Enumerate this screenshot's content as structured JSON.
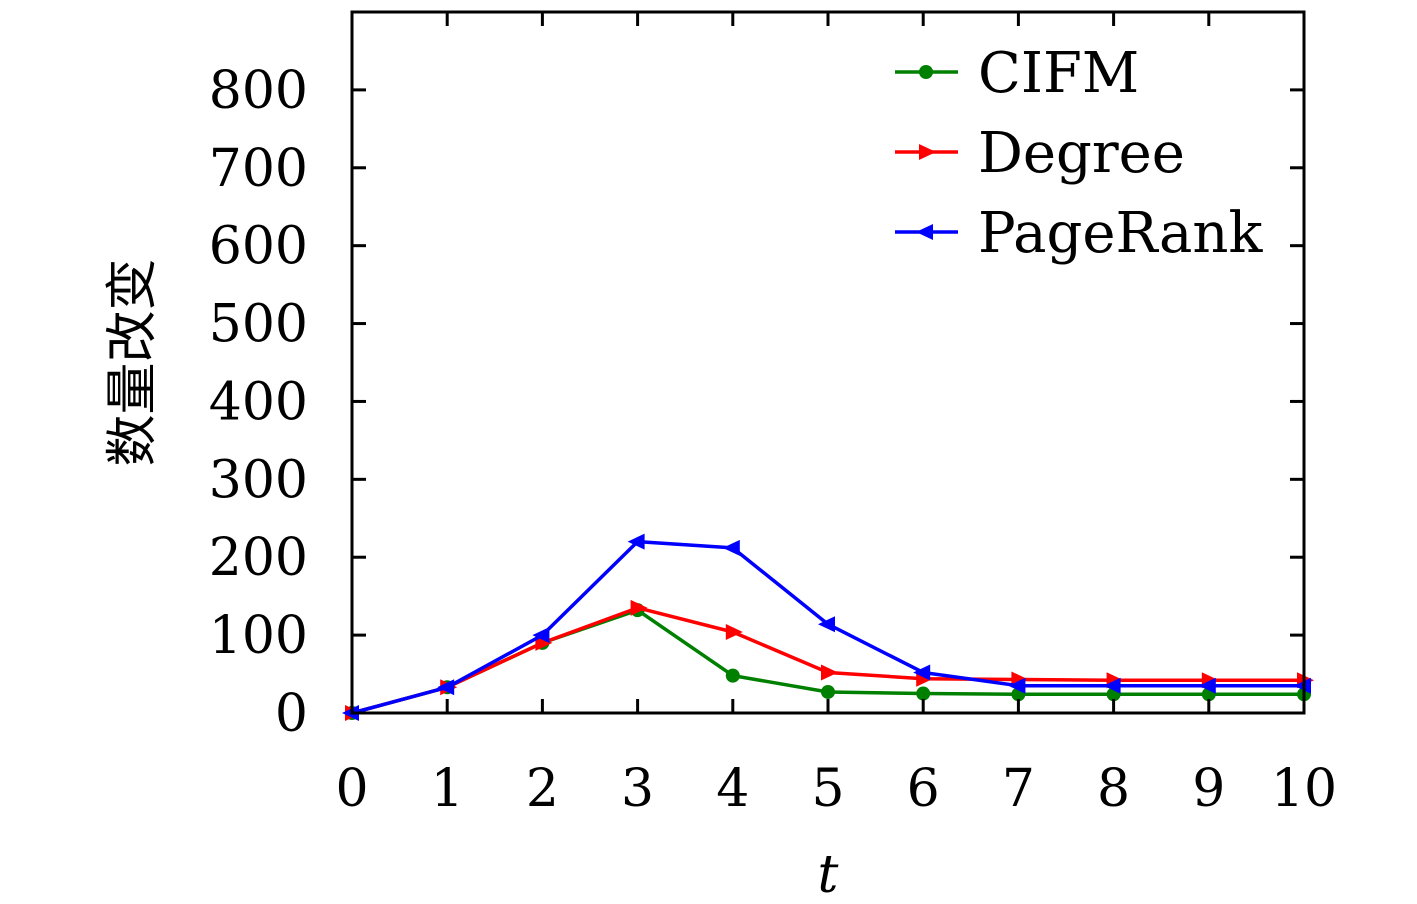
{
  "chart_data": {
    "type": "line",
    "title": "",
    "xlabel": "t",
    "ylabel": "数量改变",
    "x": [
      0,
      1,
      2,
      3,
      4,
      5,
      6,
      7,
      8,
      9,
      10
    ],
    "xlim": [
      0,
      10
    ],
    "ylim": [
      0,
      900
    ],
    "xticks": [
      0,
      1,
      2,
      3,
      4,
      5,
      6,
      7,
      8,
      9,
      10
    ],
    "yticks": [
      0,
      100,
      200,
      300,
      400,
      500,
      600,
      700,
      800
    ],
    "grid": false,
    "legend_position": "top-right",
    "series": [
      {
        "name": "CIFM",
        "color": "#008000",
        "marker": "circle",
        "values": [
          0,
          33,
          90,
          132,
          48,
          27,
          25,
          24,
          24,
          24,
          24
        ]
      },
      {
        "name": "Degree",
        "color": "#ff0000",
        "marker": "triangle-right",
        "values": [
          0,
          33,
          90,
          135,
          104,
          52,
          44,
          43,
          42,
          42,
          42
        ]
      },
      {
        "name": "PageRank",
        "color": "#0000ff",
        "marker": "triangle-left",
        "values": [
          0,
          33,
          100,
          220,
          212,
          114,
          52,
          35,
          35,
          35,
          35
        ]
      }
    ]
  }
}
